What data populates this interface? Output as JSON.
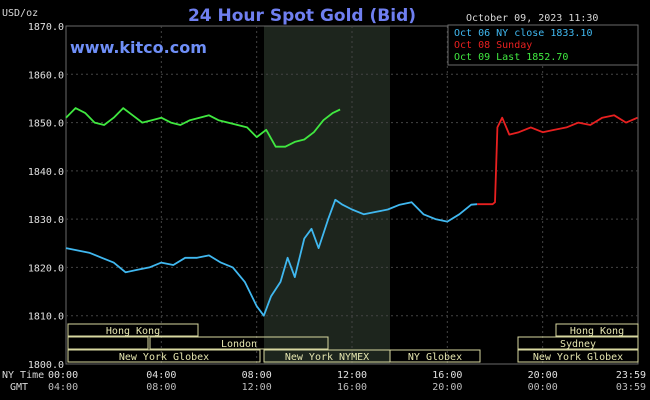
{
  "chart_data": {
    "type": "line",
    "title": "24 Hour Spot Gold (Bid)",
    "site": "www.kitco.com",
    "timestamp": "October 09, 2023 11:30",
    "yunit": "USD/oz",
    "ylim": [
      1800,
      1870
    ],
    "yticks": [
      "1870.0",
      "1860.0",
      "1850.0",
      "1840.0",
      "1830.0",
      "1820.0",
      "1810.0",
      "1800.0"
    ],
    "x_label_ny": "NY Time",
    "x_label_gmt": "GMT",
    "x_ticks_ny": [
      "00:00",
      "04:00",
      "08:00",
      "12:00",
      "16:00",
      "20:00",
      "23:59"
    ],
    "x_ticks_gmt": [
      "04:00",
      "08:00",
      "12:00",
      "16:00",
      "20:00",
      "00:00",
      "03:59"
    ],
    "legend": [
      {
        "label": "Oct 06 NY close 1833.10",
        "color": "#40b8f0"
      },
      {
        "label": "Oct 08 Sunday",
        "color": "#e82020"
      },
      {
        "label": "Oct 09 Last 1852.70",
        "color": "#40e840"
      }
    ],
    "sessions": [
      {
        "label": "Hong Kong"
      },
      {
        "label": "London"
      },
      {
        "label": "New York Globex"
      },
      {
        "label": "New York NYMEX"
      },
      {
        "label": "NY Globex"
      },
      {
        "label": "Hong Kong"
      },
      {
        "label": "Sydney"
      },
      {
        "label": "New York Globex"
      }
    ],
    "series": [
      {
        "name": "Oct 06 NY close 1833.10",
        "color": "#40b8f0",
        "x": [
          0,
          0.5,
          1,
          1.5,
          2,
          2.5,
          3,
          3.5,
          4,
          4.5,
          5,
          5.5,
          6,
          6.5,
          7,
          7.5,
          8,
          8.3,
          8.6,
          9,
          9.3,
          9.6,
          10,
          10.3,
          10.6,
          11,
          11.3,
          11.6,
          12,
          12.5,
          13,
          13.5,
          14,
          14.5,
          15,
          15.5,
          16,
          16.5,
          17,
          17.25
        ],
        "y": [
          1824,
          1823.5,
          1823,
          1822,
          1821,
          1819,
          1819.5,
          1820,
          1821,
          1820.5,
          1822,
          1822,
          1822.5,
          1821,
          1820,
          1817,
          1812,
          1810,
          1814,
          1817,
          1822,
          1818,
          1826,
          1828,
          1824,
          1830,
          1834,
          1833,
          1832,
          1831,
          1831.5,
          1832,
          1833,
          1833.5,
          1831,
          1830,
          1829.5,
          1831,
          1833,
          1833.1
        ]
      },
      {
        "name": "Oct 08 Sunday",
        "color": "#e82020",
        "x": [
          17.25,
          17.9,
          18,
          18.1,
          18.3,
          18.6,
          19,
          19.5,
          20,
          20.5,
          21,
          21.5,
          22,
          22.5,
          23,
          23.5,
          23.98
        ],
        "y": [
          1833.1,
          1833.1,
          1833.5,
          1849,
          1851,
          1847.5,
          1848,
          1849,
          1848,
          1848.5,
          1849,
          1850,
          1849.5,
          1851,
          1851.5,
          1850,
          1851
        ]
      },
      {
        "name": "Oct 09 Last 1852.70",
        "color": "#40e840",
        "x": [
          0,
          0.4,
          0.8,
          1.2,
          1.6,
          2,
          2.4,
          2.8,
          3.2,
          3.6,
          4,
          4.4,
          4.8,
          5.2,
          5.6,
          6,
          6.4,
          6.8,
          7.2,
          7.6,
          8,
          8.4,
          8.8,
          9.2,
          9.6,
          10,
          10.4,
          10.8,
          11.2,
          11.5
        ],
        "y": [
          1851,
          1853,
          1852,
          1850,
          1849.5,
          1851,
          1853,
          1851.5,
          1850,
          1850.5,
          1851,
          1850,
          1849.5,
          1850.5,
          1851,
          1851.5,
          1850.5,
          1850,
          1849.5,
          1849,
          1847,
          1848.5,
          1845,
          1845,
          1846,
          1846.5,
          1848,
          1850.5,
          1852,
          1852.7
        ]
      }
    ]
  }
}
